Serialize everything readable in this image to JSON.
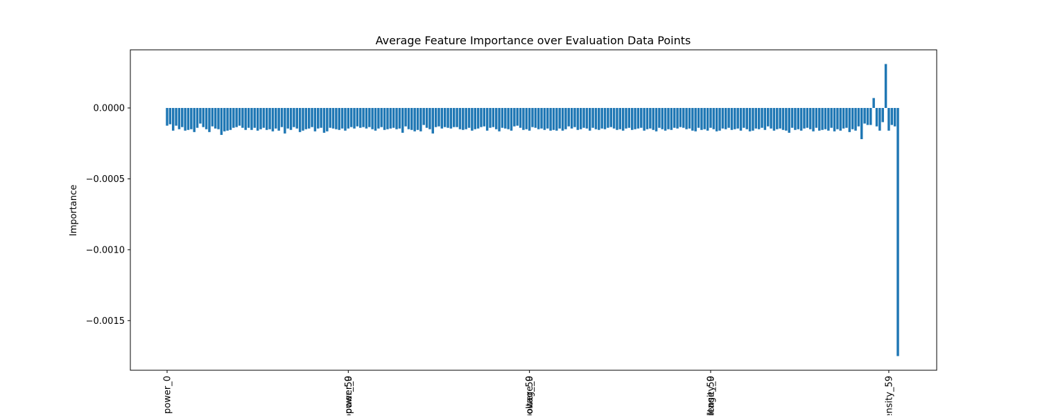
{
  "chart_data": {
    "type": "bar",
    "title": "Average Feature Importance over Evaluation Data Points",
    "xlabel": "",
    "ylabel": "Importance",
    "ylim": [
      -0.00185,
      0.00041
    ],
    "yticks": [
      0.0,
      -0.0005,
      -0.001,
      -0.0015
    ],
    "ytick_labels": [
      "0.0000",
      "−0.0005",
      "−0.0010",
      "−0.0015"
    ],
    "xtick_labels": [
      "power_0",
      "power_59",
      "power_0",
      "power_59",
      "voltage_0",
      "voltage_59",
      "density_0",
      "density_59"
    ],
    "xtick_groups": [
      {
        "index": 0,
        "labels": [
          "power_0"
        ]
      },
      {
        "index": 60,
        "labels": [
          "power_59",
          "power_0"
        ]
      },
      {
        "index": 120,
        "labels": [
          "power_59",
          "voltage_0"
        ]
      },
      {
        "index": 180,
        "labels": [
          "voltage_59",
          "density_0"
        ]
      },
      {
        "index": 239,
        "labels": [
          "density_59"
        ]
      }
    ],
    "bar_color": "#1f77b4",
    "grid": false,
    "values": [
      -0.000125,
      -0.000115,
      -0.00016,
      -0.000125,
      -0.00015,
      -0.000135,
      -0.00016,
      -0.000155,
      -0.00015,
      -0.00017,
      -0.00014,
      -0.00011,
      -0.000135,
      -0.00015,
      -0.00017,
      -0.00013,
      -0.000145,
      -0.00015,
      -0.00019,
      -0.000165,
      -0.00016,
      -0.000155,
      -0.00014,
      -0.000135,
      -0.000125,
      -0.00014,
      -0.000155,
      -0.00014,
      -0.000155,
      -0.00014,
      -0.00016,
      -0.00015,
      -0.00014,
      -0.000155,
      -0.00015,
      -0.000165,
      -0.000145,
      -0.00016,
      -0.000135,
      -0.00018,
      -0.000145,
      -0.000155,
      -0.000135,
      -0.000145,
      -0.00017,
      -0.00016,
      -0.00015,
      -0.000145,
      -0.000135,
      -0.000165,
      -0.000145,
      -0.00014,
      -0.000175,
      -0.000165,
      -0.00014,
      -0.000145,
      -0.00015,
      -0.000155,
      -0.000145,
      -0.00016,
      -0.000145,
      -0.000135,
      -0.000145,
      -0.00013,
      -0.00014,
      -0.000135,
      -0.000145,
      -0.000135,
      -0.00015,
      -0.00016,
      -0.000145,
      -0.000135,
      -0.000155,
      -0.00015,
      -0.000145,
      -0.00014,
      -0.00015,
      -0.000145,
      -0.000175,
      -0.00013,
      -0.00015,
      -0.000155,
      -0.000165,
      -0.000155,
      -0.000165,
      -0.00012,
      -0.00014,
      -0.00015,
      -0.00018,
      -0.000135,
      -0.00013,
      -0.000145,
      -0.000135,
      -0.00014,
      -0.000145,
      -0.000135,
      -0.000135,
      -0.00015,
      -0.000155,
      -0.00015,
      -0.00014,
      -0.00016,
      -0.00015,
      -0.000145,
      -0.000135,
      -0.00013,
      -0.00016,
      -0.00014,
      -0.000135,
      -0.00015,
      -0.000165,
      -0.00014,
      -0.000145,
      -0.00015,
      -0.00016,
      -0.00013,
      -0.000125,
      -0.00014,
      -0.000155,
      -0.00015,
      -0.00016,
      -0.000135,
      -0.00014,
      -0.00015,
      -0.000145,
      -0.000155,
      -0.000145,
      -0.00016,
      -0.000155,
      -0.00016,
      -0.000145,
      -0.00016,
      -0.00015,
      -0.00013,
      -0.000145,
      -0.000135,
      -0.000155,
      -0.00015,
      -0.00014,
      -0.000145,
      -0.00016,
      -0.00014,
      -0.00015,
      -0.000155,
      -0.000145,
      -0.00015,
      -0.00014,
      -0.000135,
      -0.000145,
      -0.000155,
      -0.00015,
      -0.00016,
      -0.000145,
      -0.00014,
      -0.000155,
      -0.00015,
      -0.000145,
      -0.00014,
      -0.00016,
      -0.00015,
      -0.000145,
      -0.000155,
      -0.000165,
      -0.00014,
      -0.00015,
      -0.00016,
      -0.00015,
      -0.000155,
      -0.00014,
      -0.000145,
      -0.000135,
      -0.00014,
      -0.00015,
      -0.000145,
      -0.00016,
      -0.000165,
      -0.00014,
      -0.000155,
      -0.00015,
      -0.00016,
      -0.00014,
      -0.00015,
      -0.000165,
      -0.00016,
      -0.000145,
      -0.00015,
      -0.00014,
      -0.000155,
      -0.00015,
      -0.000145,
      -0.00016,
      -0.00014,
      -0.00015,
      -0.000165,
      -0.00016,
      -0.000145,
      -0.00015,
      -0.00014,
      -0.000155,
      -0.00013,
      -0.000145,
      -0.00016,
      -0.00015,
      -0.000145,
      -0.000155,
      -0.00016,
      -0.000175,
      -0.00014,
      -0.000155,
      -0.00015,
      -0.00016,
      -0.000145,
      -0.00014,
      -0.00015,
      -0.000165,
      -0.00014,
      -0.00016,
      -0.000155,
      -0.00015,
      -0.00016,
      -0.00014,
      -0.000165,
      -0.00015,
      -0.00016,
      -0.000145,
      -0.00014,
      -0.00017,
      -0.00015,
      -0.00016,
      -0.00013,
      -0.00022,
      -0.00011,
      -0.00012,
      -0.00012,
      7e-05,
      -0.00013,
      -0.00016,
      -0.0001,
      0.00031,
      -0.00016,
      -0.00012,
      -0.00013,
      -0.00175
    ]
  }
}
